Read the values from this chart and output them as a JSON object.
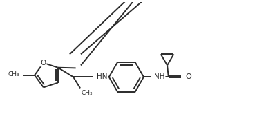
{
  "bg_color": "#ffffff",
  "line_color": "#2b2b2b",
  "line_width": 1.4,
  "figsize": [
    3.85,
    1.85
  ],
  "dpi": 100,
  "xlim": [
    0,
    10
  ],
  "ylim": [
    0,
    5
  ]
}
